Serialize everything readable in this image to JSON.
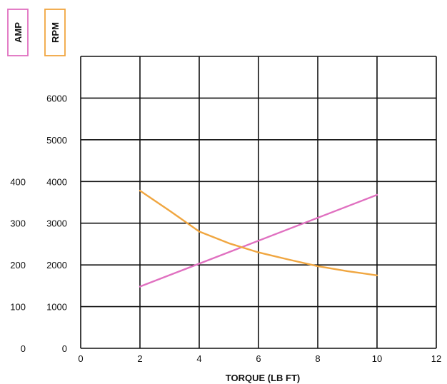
{
  "chart_data": {
    "type": "line",
    "title": "",
    "xlabel": "TORQUE (LB FT)",
    "xlim": [
      0,
      12
    ],
    "x_ticks": [
      0,
      2,
      4,
      6,
      8,
      10,
      12
    ],
    "grid": true,
    "legend": "boxed labels top-left",
    "axes": [
      {
        "name": "AMP",
        "color": "#e070c0",
        "ylim": [
          0,
          700
        ],
        "ticks": [
          0,
          100,
          200,
          300,
          400
        ]
      },
      {
        "name": "RPM",
        "color": "#f0a640",
        "ylim": [
          0,
          7000
        ],
        "ticks": [
          0,
          1000,
          2000,
          3000,
          4000,
          5000,
          6000
        ]
      }
    ],
    "series": [
      {
        "name": "AMP",
        "axis": "AMP",
        "color": "#e070c0",
        "x": [
          2,
          10
        ],
        "y": [
          148,
          368
        ]
      },
      {
        "name": "RPM",
        "axis": "RPM",
        "color": "#f0a640",
        "x": [
          2,
          3,
          4,
          5,
          6,
          7,
          8,
          9,
          10
        ],
        "y": [
          3780,
          3300,
          2800,
          2520,
          2300,
          2130,
          1970,
          1850,
          1750
        ]
      }
    ]
  }
}
